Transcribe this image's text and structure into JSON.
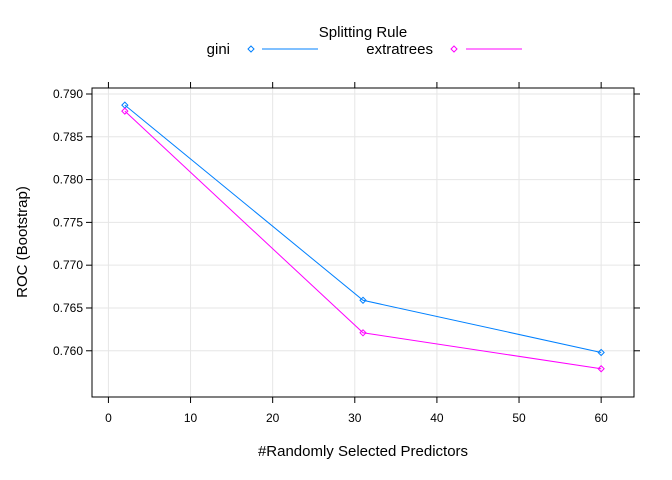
{
  "chart_data": {
    "type": "line",
    "legend": {
      "title": "Splitting Rule",
      "placement": "top"
    },
    "xlabel": "#Randomly Selected Predictors",
    "ylabel": "ROC (Bootstrap)",
    "xlim": [
      -2,
      64
    ],
    "ylim": [
      0.7546,
      0.7907
    ],
    "xticks": [
      0,
      10,
      20,
      30,
      40,
      50,
      60
    ],
    "yticks": [
      0.76,
      0.765,
      0.77,
      0.775,
      0.78,
      0.785,
      0.79
    ],
    "ytick_labels": [
      "0.760",
      "0.765",
      "0.770",
      "0.775",
      "0.780",
      "0.785",
      "0.790"
    ],
    "grid": true,
    "x": [
      2,
      31,
      60
    ],
    "series": [
      {
        "name": "gini",
        "color": "#0080ff",
        "marker": "diamond",
        "values": [
          0.7887,
          0.7659,
          0.7598
        ]
      },
      {
        "name": "extratrees",
        "color": "#ff00ff",
        "marker": "diamond",
        "values": [
          0.788,
          0.7621,
          0.7579
        ]
      }
    ]
  }
}
